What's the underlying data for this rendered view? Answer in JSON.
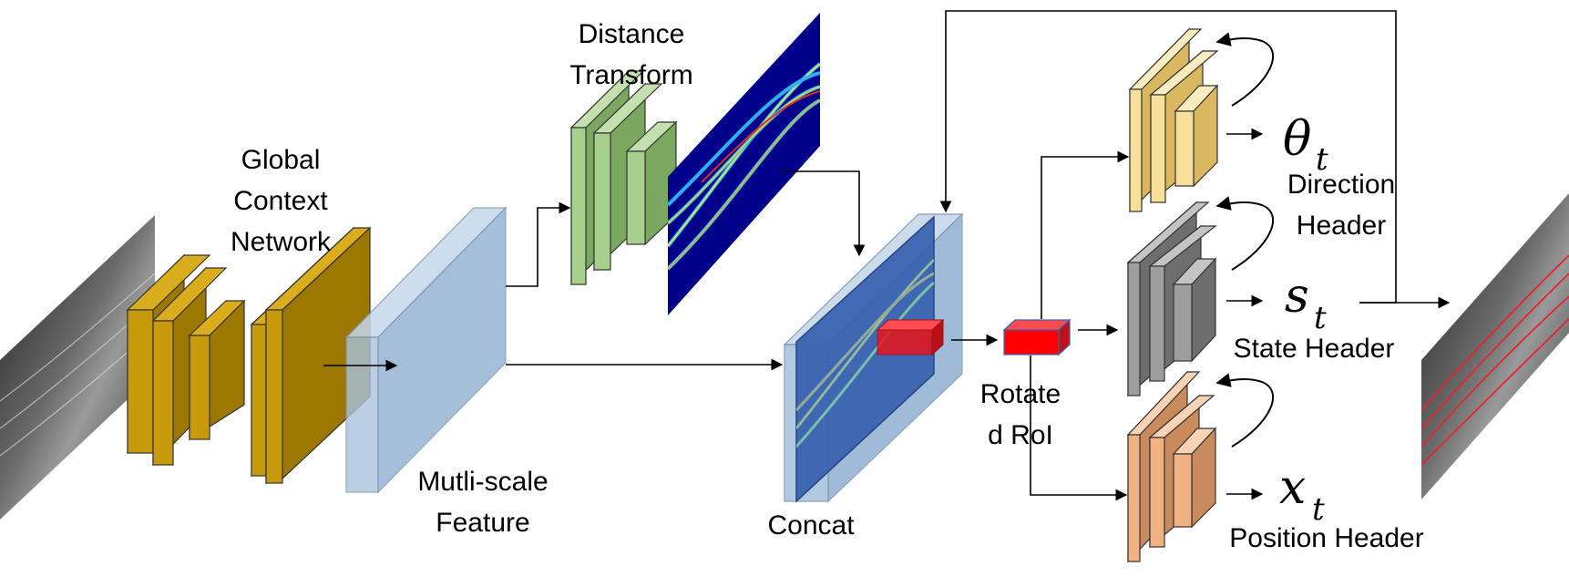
{
  "labels": {
    "global_context": [
      "Global",
      "Context",
      "Network"
    ],
    "distance_transform": [
      "Distance",
      "Transform"
    ],
    "multi_scale": [
      "Mutli-scale",
      "Feature"
    ],
    "concat": "Concat",
    "rotated_roi": [
      "Rotate",
      "d RoI"
    ],
    "direction_header": [
      "Direction",
      "Header"
    ],
    "state_header": "State Header",
    "position_header": "Position Header"
  },
  "symbols": {
    "theta": "θ",
    "theta_sub": "t",
    "state": "s",
    "state_sub": "t",
    "position": "x",
    "position_sub": "t"
  },
  "colors": {
    "gold": "#c79a0b",
    "blue_feature": "#a9c4de",
    "green": "#a8d08d",
    "heatmap_bg": "#00008b",
    "concat_blue": "#3b63b0",
    "roi_red": "#e8141b",
    "direction": "#f7e09a",
    "state": "#9e9e9e",
    "position": "#f2b183"
  }
}
